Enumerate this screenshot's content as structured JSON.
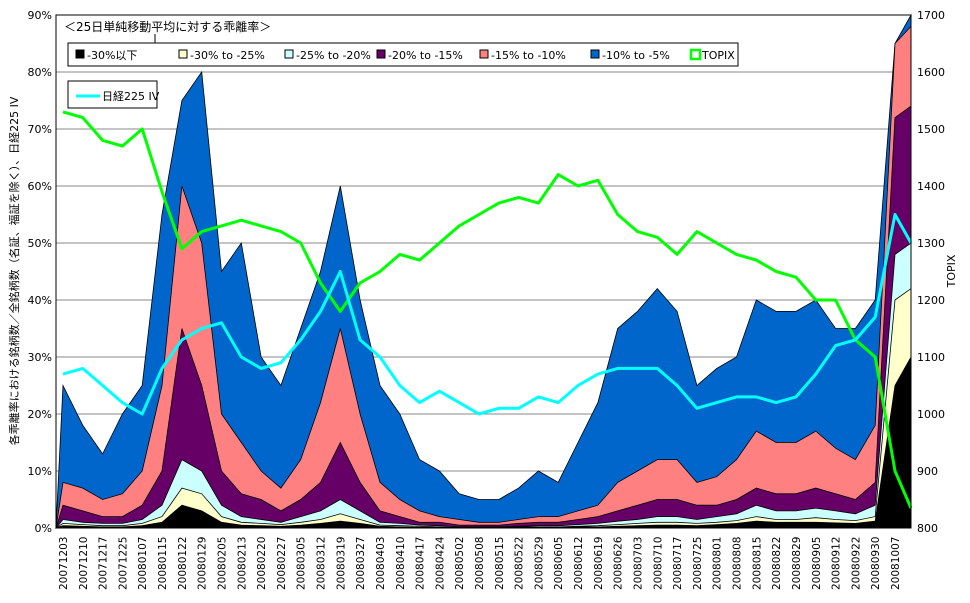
{
  "chart_data": {
    "type": "area",
    "stacked": true,
    "title": "＜25日単純移動平均に対する乖離率＞",
    "ylabel": "各乖離率における銘柄数／全銘柄数（名証、福証を除く）、日経225 IV",
    "y2label": "TOPIX",
    "ylim": [
      0,
      90
    ],
    "y_ticks": [
      "0%",
      "10%",
      "20%",
      "30%",
      "40%",
      "50%",
      "60%",
      "70%",
      "80%",
      "90%"
    ],
    "y2lim": [
      800,
      1700
    ],
    "y2_ticks": [
      "800",
      "900",
      "1000",
      "1100",
      "1200",
      "1300",
      "1400",
      "1500",
      "1600",
      "1700"
    ],
    "grid": true,
    "legend_placement": "top-left",
    "categories": [
      "20071203",
      "20071210",
      "20071217",
      "20071225",
      "20080107",
      "20080115",
      "20080122",
      "20080129",
      "20080205",
      "20080213",
      "20080220",
      "20080227",
      "20080305",
      "20080312",
      "20080319",
      "20080327",
      "20080403",
      "20080410",
      "20080417",
      "20080424",
      "20080502",
      "20080508",
      "20080515",
      "20080522",
      "20080529",
      "20080605",
      "20080612",
      "20080619",
      "20080626",
      "20080703",
      "20080710",
      "20080717",
      "20080725",
      "20080801",
      "20080808",
      "20080815",
      "20080822",
      "20080829",
      "20080905",
      "20080912",
      "20080922",
      "20080930",
      "20081007"
    ],
    "x_index": [
      0,
      1,
      2,
      3,
      4,
      5,
      6,
      7,
      8,
      9,
      10,
      11,
      12,
      13,
      14,
      15,
      16,
      17,
      18,
      19,
      20,
      21,
      22,
      23,
      24,
      25,
      26,
      27,
      28,
      29,
      30,
      31,
      32,
      33,
      34,
      35,
      36,
      37,
      38,
      39,
      40,
      41,
      42,
      42.85
    ],
    "area_series_cumulative_top_percent": [
      {
        "name": "-30%以下",
        "color": "#000000",
        "values": [
          0.4,
          0.3,
          0.2,
          0.2,
          0.4,
          1,
          4,
          3,
          1,
          0.5,
          0.4,
          0.3,
          0.5,
          0.8,
          1.2,
          0.8,
          0.3,
          0.2,
          0.1,
          0.1,
          0.1,
          0.1,
          0.1,
          0.1,
          0.1,
          0.1,
          0.2,
          0.2,
          0.3,
          0.4,
          0.5,
          0.5,
          0.4,
          0.6,
          0.8,
          1.2,
          1,
          1,
          1,
          0.9,
          0.8,
          1.2,
          25,
          30
        ]
      },
      {
        "name": "-30% to -25%",
        "color": "#FFFFCC",
        "values": [
          0.8,
          0.6,
          0.4,
          0.4,
          0.8,
          2,
          7,
          6,
          2,
          1,
          0.8,
          0.6,
          1,
          1.5,
          2.5,
          1.5,
          0.5,
          0.4,
          0.3,
          0.2,
          0.1,
          0.1,
          0.1,
          0.2,
          0.2,
          0.2,
          0.3,
          0.4,
          0.6,
          0.8,
          1,
          1,
          0.8,
          1,
          1.3,
          2,
          1.5,
          1.5,
          1.8,
          1.5,
          1.3,
          2,
          40,
          42
        ]
      },
      {
        "name": "-25% to -20%",
        "color": "#CCFFFF",
        "values": [
          1.5,
          1,
          0.8,
          0.8,
          1.5,
          4,
          12,
          10,
          4,
          2,
          1.5,
          1,
          2,
          3,
          5,
          3,
          1,
          0.8,
          0.5,
          0.4,
          0.2,
          0.2,
          0.2,
          0.3,
          0.4,
          0.4,
          0.6,
          0.8,
          1.2,
          1.5,
          2,
          2,
          1.5,
          2,
          2.5,
          4,
          3,
          3,
          3.5,
          3,
          2.5,
          4,
          48,
          50
        ]
      },
      {
        "name": "-20% to -15%",
        "color": "#660066",
        "values": [
          4,
          3,
          2,
          2,
          4,
          10,
          35,
          25,
          10,
          6,
          5,
          3,
          5,
          8,
          15,
          8,
          3,
          2,
          1,
          1,
          0.5,
          0.5,
          0.5,
          0.8,
          1,
          1,
          1.5,
          2,
          3,
          4,
          5,
          5,
          4,
          4,
          5,
          7,
          6,
          6,
          7,
          6,
          5,
          8,
          72,
          74
        ]
      },
      {
        "name": "-15% to -10%",
        "color": "#FF8080",
        "values": [
          8,
          7,
          5,
          6,
          10,
          25,
          60,
          50,
          20,
          15,
          10,
          7,
          12,
          22,
          35,
          20,
          8,
          5,
          3,
          2,
          1.5,
          1,
          1,
          1.5,
          2,
          2,
          3,
          4,
          8,
          10,
          12,
          12,
          8,
          9,
          12,
          17,
          15,
          15,
          17,
          14,
          12,
          18,
          85,
          88
        ]
      },
      {
        "name": "-10% to -5%",
        "color": "#0066CC",
        "values": [
          25,
          18,
          13,
          20,
          25,
          55,
          75,
          80,
          45,
          50,
          30,
          25,
          35,
          45,
          60,
          40,
          25,
          20,
          12,
          10,
          6,
          5,
          5,
          7,
          10,
          8,
          15,
          22,
          35,
          38,
          42,
          38,
          25,
          28,
          30,
          40,
          38,
          38,
          40,
          35,
          35,
          40,
          85,
          90
        ]
      }
    ],
    "line_series": [
      {
        "name": "TOPIX",
        "axis": "right",
        "color": "#00FF00",
        "values": [
          1530,
          1520,
          1480,
          1470,
          1500,
          1390,
          1290,
          1320,
          1330,
          1340,
          1330,
          1320,
          1300,
          1230,
          1180,
          1230,
          1250,
          1280,
          1270,
          1300,
          1330,
          1350,
          1370,
          1380,
          1370,
          1420,
          1400,
          1410,
          1350,
          1320,
          1310,
          1280,
          1320,
          1300,
          1280,
          1270,
          1250,
          1240,
          1200,
          1200,
          1130,
          1100,
          900,
          835
        ]
      },
      {
        "name": "日経225 IV",
        "axis": "left",
        "color": "#00FFFF",
        "values": [
          27,
          28,
          25,
          22,
          20,
          28,
          33,
          35,
          36,
          30,
          28,
          29,
          33,
          38,
          45,
          33,
          30,
          25,
          22,
          24,
          22,
          20,
          21,
          21,
          23,
          22,
          25,
          27,
          28,
          28,
          28,
          25,
          21,
          22,
          23,
          23,
          22,
          23,
          27,
          32,
          33,
          37,
          55,
          50
        ]
      }
    ],
    "legend": {
      "items": [
        "-30%以下",
        "-30% to -25%",
        "-25% to -20%",
        "-20% to -15%",
        "-15% to -10%",
        "-10% to -5%",
        "TOPIX"
      ],
      "iv_item": "日経225 IV"
    }
  }
}
